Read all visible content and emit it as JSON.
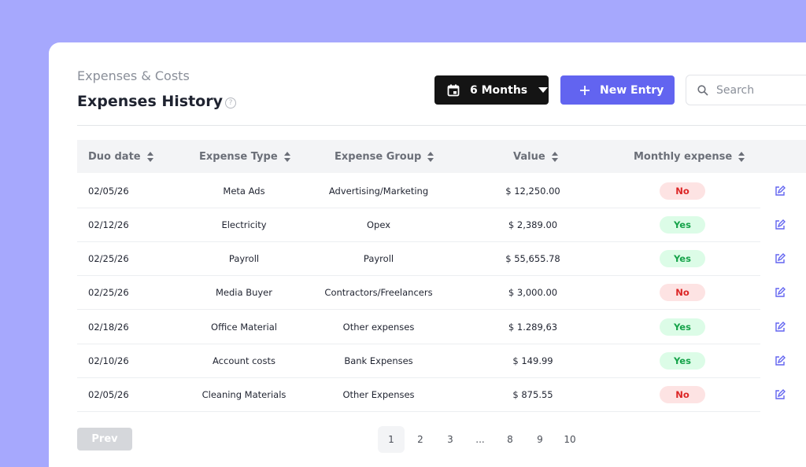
{
  "header": {
    "subtitle": "Expenses & Costs",
    "title": "Expenses History"
  },
  "toolbar": {
    "period": "6 Months",
    "new_entry": "New Entry",
    "search_placeholder": "Search"
  },
  "table": {
    "columns": [
      "Duo date",
      "Expense Type",
      "Expense Group",
      "Value",
      "Monthly expense"
    ],
    "rows": [
      [
        "02/05/26",
        "Meta Ads",
        "Advertising/Marketing",
        "$ 12,250.00",
        "No"
      ],
      [
        "02/12/26",
        "Electricity",
        "Opex",
        "$ 2,389.00",
        "Yes"
      ],
      [
        "02/25/26",
        "Payroll",
        "Payroll",
        "$ 55,655.78",
        "Yes"
      ],
      [
        "02/25/26",
        "Media Buyer",
        "Contractors/Freelancers",
        "$ 3,000.00",
        "No"
      ],
      [
        "02/18/26",
        "Office Material",
        "Other expenses",
        "$ 1.289,63",
        "Yes"
      ],
      [
        "02/10/26",
        "Account costs",
        "Bank Expenses",
        "$ 149.99",
        "Yes"
      ],
      [
        "02/05/26",
        "Cleaning Materials",
        "Other Expenses",
        "$ 875.55",
        "No"
      ]
    ]
  },
  "pagination": {
    "prev": "Prev",
    "pages": [
      "1",
      "2",
      "3",
      "...",
      "8",
      "9",
      "10"
    ]
  }
}
